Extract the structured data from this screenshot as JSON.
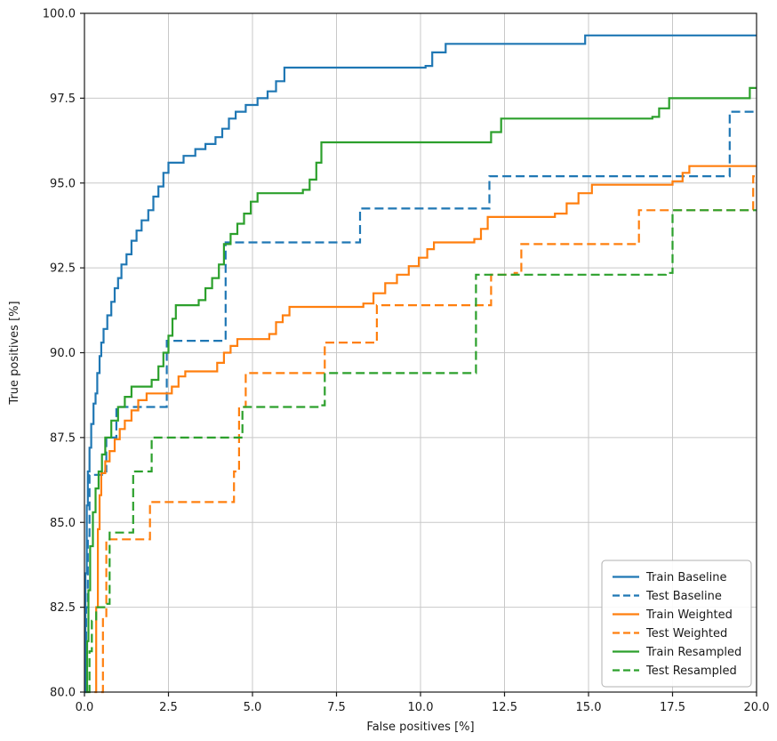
{
  "chart_data": {
    "type": "line",
    "title": "",
    "xlabel": "False positives [%]",
    "ylabel": "True positives [%]",
    "xlim": [
      0,
      20
    ],
    "ylim": [
      80,
      100
    ],
    "xticks": [
      0.0,
      2.5,
      5.0,
      7.5,
      10.0,
      12.5,
      15.0,
      17.5,
      20.0
    ],
    "yticks": [
      80.0,
      82.5,
      85.0,
      87.5,
      90.0,
      92.5,
      95.0,
      97.5,
      100.0
    ],
    "grid": true,
    "legend_position": "lower right",
    "line_interpolation": "step-after",
    "series": [
      {
        "name": "Train Baseline",
        "color": "#1f77b4",
        "dash": "solid",
        "points": [
          [
            0,
            80
          ],
          [
            0.03,
            83.5
          ],
          [
            0.07,
            85.5
          ],
          [
            0.1,
            86.5
          ],
          [
            0.15,
            87.2
          ],
          [
            0.2,
            87.9
          ],
          [
            0.27,
            88.5
          ],
          [
            0.33,
            88.8
          ],
          [
            0.38,
            89.4
          ],
          [
            0.45,
            89.9
          ],
          [
            0.5,
            90.3
          ],
          [
            0.57,
            90.7
          ],
          [
            0.68,
            91.1
          ],
          [
            0.8,
            91.5
          ],
          [
            0.9,
            91.9
          ],
          [
            1.0,
            92.2
          ],
          [
            1.1,
            92.6
          ],
          [
            1.25,
            92.9
          ],
          [
            1.4,
            93.3
          ],
          [
            1.55,
            93.6
          ],
          [
            1.7,
            93.9
          ],
          [
            1.9,
            94.2
          ],
          [
            2.05,
            94.6
          ],
          [
            2.2,
            94.9
          ],
          [
            2.35,
            95.3
          ],
          [
            2.5,
            95.6
          ],
          [
            2.95,
            95.8
          ],
          [
            3.3,
            96.0
          ],
          [
            3.6,
            96.15
          ],
          [
            3.9,
            96.35
          ],
          [
            4.1,
            96.6
          ],
          [
            4.3,
            96.9
          ],
          [
            4.5,
            97.1
          ],
          [
            4.8,
            97.3
          ],
          [
            5.15,
            97.5
          ],
          [
            5.45,
            97.7
          ],
          [
            5.7,
            98.0
          ],
          [
            5.95,
            98.4
          ],
          [
            10.15,
            98.45
          ],
          [
            10.35,
            98.85
          ],
          [
            10.75,
            99.1
          ],
          [
            14.9,
            99.35
          ],
          [
            20,
            99.35
          ]
        ]
      },
      {
        "name": "Test Baseline",
        "color": "#1f77b4",
        "dash": "dashed",
        "points": [
          [
            0,
            80
          ],
          [
            0.05,
            82.5
          ],
          [
            0.1,
            84.6
          ],
          [
            0.15,
            86.4
          ],
          [
            0.55,
            86.5
          ],
          [
            0.65,
            87.5
          ],
          [
            0.95,
            88.4
          ],
          [
            2.3,
            88.4
          ],
          [
            2.45,
            90.35
          ],
          [
            4.05,
            90.35
          ],
          [
            4.2,
            93.25
          ],
          [
            8.05,
            93.25
          ],
          [
            8.2,
            94.25
          ],
          [
            11.9,
            94.25
          ],
          [
            12.05,
            95.2
          ],
          [
            19.0,
            95.2
          ],
          [
            19.2,
            97.1
          ],
          [
            20,
            97.1
          ]
        ]
      },
      {
        "name": "Train Weighted",
        "color": "#ff7f0e",
        "dash": "solid",
        "points": [
          [
            0.3,
            80
          ],
          [
            0.35,
            82.5
          ],
          [
            0.4,
            84.8
          ],
          [
            0.45,
            85.8
          ],
          [
            0.5,
            86.45
          ],
          [
            0.62,
            86.8
          ],
          [
            0.75,
            87.1
          ],
          [
            0.9,
            87.45
          ],
          [
            1.05,
            87.75
          ],
          [
            1.2,
            88.0
          ],
          [
            1.4,
            88.3
          ],
          [
            1.6,
            88.6
          ],
          [
            1.85,
            88.8
          ],
          [
            2.6,
            89.0
          ],
          [
            2.8,
            89.3
          ],
          [
            3.0,
            89.45
          ],
          [
            3.95,
            89.7
          ],
          [
            4.15,
            90.0
          ],
          [
            4.35,
            90.2
          ],
          [
            4.55,
            90.4
          ],
          [
            5.5,
            90.55
          ],
          [
            5.7,
            90.9
          ],
          [
            5.9,
            91.1
          ],
          [
            6.1,
            91.35
          ],
          [
            8.3,
            91.45
          ],
          [
            8.6,
            91.75
          ],
          [
            8.95,
            92.05
          ],
          [
            9.3,
            92.3
          ],
          [
            9.65,
            92.55
          ],
          [
            9.95,
            92.8
          ],
          [
            10.2,
            93.05
          ],
          [
            10.4,
            93.25
          ],
          [
            11.6,
            93.35
          ],
          [
            11.8,
            93.65
          ],
          [
            12.0,
            94.0
          ],
          [
            14.0,
            94.1
          ],
          [
            14.35,
            94.4
          ],
          [
            14.7,
            94.7
          ],
          [
            15.1,
            94.95
          ],
          [
            17.5,
            95.05
          ],
          [
            17.8,
            95.3
          ],
          [
            18.0,
            95.5
          ],
          [
            20,
            95.5
          ]
        ]
      },
      {
        "name": "Test Weighted",
        "color": "#ff7f0e",
        "dash": "dashed",
        "points": [
          [
            0.5,
            80
          ],
          [
            0.55,
            82.2
          ],
          [
            0.65,
            84.5
          ],
          [
            1.85,
            84.5
          ],
          [
            1.95,
            85.6
          ],
          [
            4.3,
            85.6
          ],
          [
            4.45,
            86.5
          ],
          [
            4.6,
            88.4
          ],
          [
            4.8,
            89.4
          ],
          [
            7.0,
            89.4
          ],
          [
            7.15,
            90.3
          ],
          [
            8.5,
            90.3
          ],
          [
            8.7,
            91.4
          ],
          [
            11.9,
            91.4
          ],
          [
            12.1,
            92.3
          ],
          [
            12.8,
            92.35
          ],
          [
            13.0,
            93.2
          ],
          [
            16.3,
            93.2
          ],
          [
            16.5,
            94.2
          ],
          [
            19.7,
            94.2
          ],
          [
            19.9,
            95.2
          ],
          [
            20,
            95.2
          ]
        ]
      },
      {
        "name": "Train Resampled",
        "color": "#2ca02c",
        "dash": "solid",
        "points": [
          [
            0.05,
            80
          ],
          [
            0.08,
            81.5
          ],
          [
            0.12,
            83.0
          ],
          [
            0.17,
            84.3
          ],
          [
            0.25,
            85.3
          ],
          [
            0.33,
            86.0
          ],
          [
            0.42,
            86.5
          ],
          [
            0.52,
            87.0
          ],
          [
            0.62,
            87.5
          ],
          [
            0.8,
            88.0
          ],
          [
            1.0,
            88.4
          ],
          [
            1.2,
            88.7
          ],
          [
            1.4,
            89.0
          ],
          [
            2.0,
            89.2
          ],
          [
            2.2,
            89.6
          ],
          [
            2.35,
            90.0
          ],
          [
            2.5,
            90.5
          ],
          [
            2.62,
            91.0
          ],
          [
            2.72,
            91.4
          ],
          [
            3.4,
            91.55
          ],
          [
            3.6,
            91.9
          ],
          [
            3.8,
            92.2
          ],
          [
            4.0,
            92.6
          ],
          [
            4.15,
            93.2
          ],
          [
            4.35,
            93.5
          ],
          [
            4.55,
            93.8
          ],
          [
            4.75,
            94.1
          ],
          [
            4.95,
            94.45
          ],
          [
            5.15,
            94.7
          ],
          [
            6.5,
            94.8
          ],
          [
            6.7,
            95.1
          ],
          [
            6.9,
            95.6
          ],
          [
            7.05,
            96.2
          ],
          [
            11.9,
            96.2
          ],
          [
            12.1,
            96.5
          ],
          [
            12.4,
            96.9
          ],
          [
            16.9,
            96.95
          ],
          [
            17.1,
            97.2
          ],
          [
            17.4,
            97.5
          ],
          [
            19.6,
            97.5
          ],
          [
            19.8,
            97.8
          ],
          [
            20,
            97.8
          ]
        ]
      },
      {
        "name": "Test Resampled",
        "color": "#2ca02c",
        "dash": "dashed",
        "points": [
          [
            0.1,
            80
          ],
          [
            0.15,
            81.2
          ],
          [
            0.22,
            82.1
          ],
          [
            0.35,
            82.5
          ],
          [
            0.65,
            82.6
          ],
          [
            0.75,
            84.7
          ],
          [
            1.35,
            84.7
          ],
          [
            1.45,
            86.5
          ],
          [
            1.9,
            86.5
          ],
          [
            2.0,
            87.5
          ],
          [
            4.5,
            87.5
          ],
          [
            4.7,
            88.4
          ],
          [
            7.0,
            88.45
          ],
          [
            7.15,
            89.4
          ],
          [
            11.45,
            89.4
          ],
          [
            11.65,
            92.3
          ],
          [
            17.3,
            92.35
          ],
          [
            17.5,
            94.2
          ],
          [
            20,
            94.2
          ]
        ]
      }
    ],
    "legend_labels": [
      "Train Baseline",
      "Test Baseline",
      "Train Weighted",
      "Test Weighted",
      "Train Resampled",
      "Test Resampled"
    ]
  },
  "style": {
    "grid_color": "#c8c8c8",
    "spine_color": "#1a1a1a",
    "text_color": "#1a1a1a",
    "legend_border_color": "#b0b0b0",
    "background": "#ffffff"
  }
}
